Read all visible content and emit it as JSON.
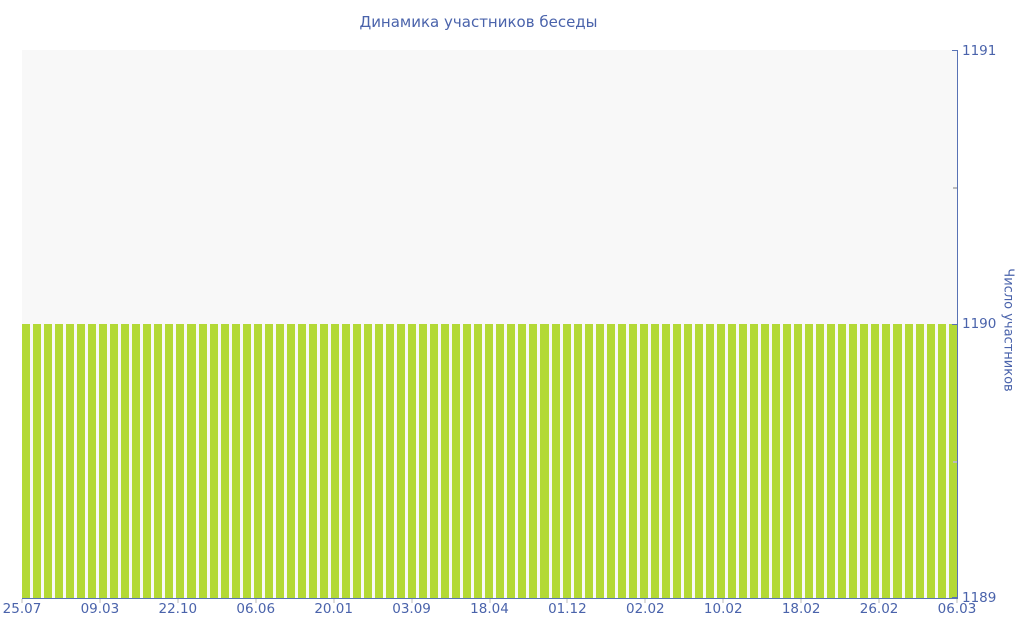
{
  "chart_data": {
    "type": "bar",
    "title": "Динамика участников беседы",
    "ylabel": "Число участников",
    "xlabel": "",
    "ylim": [
      1189,
      1191
    ],
    "y_ticks": [
      1189,
      1190,
      1191
    ],
    "y_minor_ticks": [
      1189.5,
      1190.5
    ],
    "grid": false,
    "legend": "none",
    "x_tick_labels": [
      "25.07",
      "09.03",
      "22.10",
      "06.06",
      "20.01",
      "03.09",
      "18.04",
      "01.12",
      "02.02",
      "10.02",
      "18.02",
      "26.02",
      "06.03"
    ],
    "values": [
      1190,
      1190,
      1190,
      1190,
      1190,
      1190,
      1190,
      1190,
      1190,
      1190,
      1190,
      1190,
      1190,
      1190,
      1190,
      1190,
      1190,
      1190,
      1190,
      1190,
      1190,
      1190,
      1190,
      1190,
      1190,
      1190,
      1190,
      1190,
      1190,
      1190,
      1190,
      1190,
      1190,
      1190,
      1190,
      1190,
      1190,
      1190,
      1190,
      1190,
      1190,
      1190,
      1190,
      1190,
      1190,
      1190,
      1190,
      1190,
      1190,
      1190,
      1190,
      1190,
      1190,
      1190,
      1190,
      1190,
      1190,
      1190,
      1190,
      1190,
      1190,
      1190,
      1190,
      1190,
      1190,
      1190,
      1190,
      1190,
      1190,
      1190,
      1190,
      1190,
      1190,
      1190,
      1190,
      1190,
      1190,
      1190,
      1190,
      1190,
      1190,
      1190,
      1190,
      1190,
      1190
    ],
    "colors": {
      "bar": "#b3d936",
      "axis": "#5872b5",
      "text": "#4a63ab",
      "plot_bg": "#f8f8f8",
      "minor_tick": "#bbbbbb"
    }
  }
}
